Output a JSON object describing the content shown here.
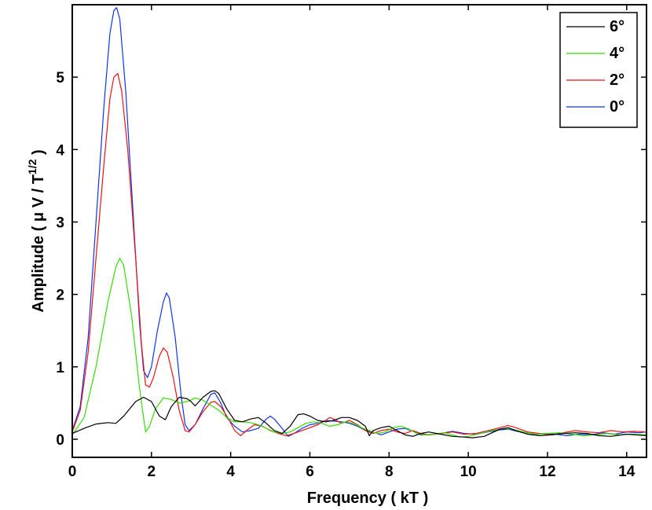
{
  "chart_data": {
    "type": "line",
    "xlabel": "Frequency ( kT )",
    "ylabel": "Amplitude ( μ V / T",
    "ylabel_superscript": "1/2",
    "ylabel_suffix": " )",
    "xlim": [
      0,
      14.5
    ],
    "ylim": [
      -0.25,
      6.0
    ],
    "xticks": [
      0,
      2,
      4,
      6,
      8,
      10,
      12,
      14
    ],
    "yticks": [
      0,
      1,
      2,
      3,
      4,
      5
    ],
    "grid": false,
    "legend_position": "top-right",
    "series": [
      {
        "name": "6°",
        "color": "#000000",
        "points": [
          [
            0,
            0.08
          ],
          [
            0.3,
            0.15
          ],
          [
            0.6,
            0.21
          ],
          [
            0.9,
            0.23
          ],
          [
            1.1,
            0.22
          ],
          [
            1.3,
            0.32
          ],
          [
            1.6,
            0.52
          ],
          [
            1.8,
            0.58
          ],
          [
            2.0,
            0.52
          ],
          [
            2.2,
            0.32
          ],
          [
            2.35,
            0.27
          ],
          [
            2.5,
            0.45
          ],
          [
            2.7,
            0.58
          ],
          [
            2.9,
            0.56
          ],
          [
            3.0,
            0.52
          ],
          [
            3.1,
            0.46
          ],
          [
            3.3,
            0.58
          ],
          [
            3.5,
            0.66
          ],
          [
            3.6,
            0.67
          ],
          [
            3.7,
            0.63
          ],
          [
            3.9,
            0.42
          ],
          [
            4.1,
            0.26
          ],
          [
            4.3,
            0.24
          ],
          [
            4.5,
            0.28
          ],
          [
            4.7,
            0.3
          ],
          [
            4.9,
            0.22
          ],
          [
            5.1,
            0.12
          ],
          [
            5.3,
            0.08
          ],
          [
            5.5,
            0.18
          ],
          [
            5.7,
            0.34
          ],
          [
            5.85,
            0.35
          ],
          [
            6.0,
            0.32
          ],
          [
            6.2,
            0.26
          ],
          [
            6.4,
            0.24
          ],
          [
            6.6,
            0.26
          ],
          [
            6.8,
            0.3
          ],
          [
            7.0,
            0.3
          ],
          [
            7.2,
            0.26
          ],
          [
            7.4,
            0.18
          ],
          [
            7.5,
            0.05
          ],
          [
            7.6,
            0.12
          ],
          [
            7.8,
            0.16
          ],
          [
            8.0,
            0.18
          ],
          [
            8.2,
            0.12
          ],
          [
            8.4,
            0.06
          ],
          [
            8.6,
            0.04
          ],
          [
            8.8,
            0.08
          ],
          [
            9.0,
            0.1
          ],
          [
            9.3,
            0.07
          ],
          [
            9.6,
            0.04
          ],
          [
            9.9,
            0.03
          ],
          [
            10.1,
            0.02
          ],
          [
            10.4,
            0.04
          ],
          [
            10.8,
            0.14
          ],
          [
            11.0,
            0.16
          ],
          [
            11.2,
            0.12
          ],
          [
            11.5,
            0.07
          ],
          [
            11.8,
            0.05
          ],
          [
            12.1,
            0.06
          ],
          [
            12.4,
            0.08
          ],
          [
            12.7,
            0.09
          ],
          [
            13.0,
            0.08
          ],
          [
            13.3,
            0.05
          ],
          [
            13.6,
            0.04
          ],
          [
            14.0,
            0.07
          ],
          [
            14.5,
            0.05
          ]
        ]
      },
      {
        "name": "4°",
        "color": "#33dd00",
        "points": [
          [
            0,
            0.06
          ],
          [
            0.3,
            0.3
          ],
          [
            0.6,
            1.0
          ],
          [
            0.9,
            1.9
          ],
          [
            1.1,
            2.38
          ],
          [
            1.2,
            2.5
          ],
          [
            1.3,
            2.4
          ],
          [
            1.5,
            1.7
          ],
          [
            1.7,
            0.7
          ],
          [
            1.85,
            0.1
          ],
          [
            1.95,
            0.18
          ],
          [
            2.1,
            0.42
          ],
          [
            2.3,
            0.57
          ],
          [
            2.5,
            0.55
          ],
          [
            2.7,
            0.5
          ],
          [
            2.9,
            0.52
          ],
          [
            3.1,
            0.57
          ],
          [
            3.3,
            0.54
          ],
          [
            3.5,
            0.47
          ],
          [
            3.7,
            0.4
          ],
          [
            3.9,
            0.3
          ],
          [
            4.1,
            0.24
          ],
          [
            4.3,
            0.24
          ],
          [
            4.5,
            0.23
          ],
          [
            4.7,
            0.2
          ],
          [
            4.9,
            0.15
          ],
          [
            5.1,
            0.1
          ],
          [
            5.3,
            0.08
          ],
          [
            5.5,
            0.1
          ],
          [
            5.7,
            0.16
          ],
          [
            5.9,
            0.22
          ],
          [
            6.1,
            0.24
          ],
          [
            6.3,
            0.22
          ],
          [
            6.5,
            0.18
          ],
          [
            6.7,
            0.2
          ],
          [
            6.9,
            0.24
          ],
          [
            7.1,
            0.22
          ],
          [
            7.3,
            0.16
          ],
          [
            7.5,
            0.12
          ],
          [
            7.7,
            0.08
          ],
          [
            7.9,
            0.1
          ],
          [
            8.1,
            0.16
          ],
          [
            8.3,
            0.18
          ],
          [
            8.5,
            0.14
          ],
          [
            8.7,
            0.08
          ],
          [
            8.9,
            0.06
          ],
          [
            9.1,
            0.07
          ],
          [
            9.4,
            0.09
          ],
          [
            9.6,
            0.06
          ],
          [
            9.8,
            0.03
          ],
          [
            10.0,
            0.04
          ],
          [
            10.3,
            0.08
          ],
          [
            10.6,
            0.12
          ],
          [
            10.9,
            0.15
          ],
          [
            11.1,
            0.14
          ],
          [
            11.4,
            0.1
          ],
          [
            11.7,
            0.07
          ],
          [
            12.0,
            0.08
          ],
          [
            12.3,
            0.09
          ],
          [
            12.6,
            0.07
          ],
          [
            12.9,
            0.05
          ],
          [
            13.2,
            0.06
          ],
          [
            13.5,
            0.08
          ],
          [
            13.8,
            0.06
          ],
          [
            14.1,
            0.07
          ],
          [
            14.5,
            0.06
          ]
        ]
      },
      {
        "name": "2°",
        "color": "#ee1111",
        "points": [
          [
            0,
            0.1
          ],
          [
            0.2,
            0.4
          ],
          [
            0.4,
            1.2
          ],
          [
            0.6,
            2.5
          ],
          [
            0.8,
            3.8
          ],
          [
            0.95,
            4.7
          ],
          [
            1.05,
            5.0
          ],
          [
            1.15,
            5.05
          ],
          [
            1.25,
            4.8
          ],
          [
            1.4,
            4.0
          ],
          [
            1.6,
            2.5
          ],
          [
            1.75,
            1.3
          ],
          [
            1.85,
            0.75
          ],
          [
            1.95,
            0.72
          ],
          [
            2.05,
            0.85
          ],
          [
            2.2,
            1.15
          ],
          [
            2.3,
            1.26
          ],
          [
            2.4,
            1.2
          ],
          [
            2.55,
            0.85
          ],
          [
            2.7,
            0.4
          ],
          [
            2.85,
            0.12
          ],
          [
            2.95,
            0.1
          ],
          [
            3.1,
            0.2
          ],
          [
            3.3,
            0.38
          ],
          [
            3.5,
            0.51
          ],
          [
            3.6,
            0.52
          ],
          [
            3.75,
            0.45
          ],
          [
            3.95,
            0.28
          ],
          [
            4.1,
            0.12
          ],
          [
            4.25,
            0.05
          ],
          [
            4.4,
            0.12
          ],
          [
            4.6,
            0.2
          ],
          [
            4.8,
            0.18
          ],
          [
            5.0,
            0.12
          ],
          [
            5.2,
            0.08
          ],
          [
            5.4,
            0.05
          ],
          [
            5.6,
            0.08
          ],
          [
            5.8,
            0.12
          ],
          [
            6.0,
            0.16
          ],
          [
            6.2,
            0.2
          ],
          [
            6.4,
            0.26
          ],
          [
            6.5,
            0.3
          ],
          [
            6.6,
            0.28
          ],
          [
            6.8,
            0.22
          ],
          [
            7.0,
            0.26
          ],
          [
            7.2,
            0.2
          ],
          [
            7.4,
            0.12
          ],
          [
            7.6,
            0.08
          ],
          [
            7.8,
            0.12
          ],
          [
            8.0,
            0.14
          ],
          [
            8.2,
            0.1
          ],
          [
            8.4,
            0.08
          ],
          [
            8.6,
            0.12
          ],
          [
            8.8,
            0.08
          ],
          [
            9.0,
            0.06
          ],
          [
            9.3,
            0.08
          ],
          [
            9.6,
            0.1
          ],
          [
            9.9,
            0.07
          ],
          [
            10.2,
            0.08
          ],
          [
            10.5,
            0.12
          ],
          [
            10.8,
            0.16
          ],
          [
            11.0,
            0.19
          ],
          [
            11.2,
            0.16
          ],
          [
            11.5,
            0.1
          ],
          [
            11.8,
            0.08
          ],
          [
            12.1,
            0.06
          ],
          [
            12.4,
            0.09
          ],
          [
            12.7,
            0.12
          ],
          [
            13.0,
            0.1
          ],
          [
            13.3,
            0.09
          ],
          [
            13.6,
            0.12
          ],
          [
            13.9,
            0.1
          ],
          [
            14.2,
            0.11
          ],
          [
            14.5,
            0.1
          ]
        ]
      },
      {
        "name": "0°",
        "color": "#1133ee",
        "points": [
          [
            0,
            0.12
          ],
          [
            0.2,
            0.45
          ],
          [
            0.4,
            1.4
          ],
          [
            0.6,
            3.0
          ],
          [
            0.8,
            4.6
          ],
          [
            0.95,
            5.6
          ],
          [
            1.05,
            5.92
          ],
          [
            1.12,
            5.96
          ],
          [
            1.2,
            5.8
          ],
          [
            1.35,
            4.8
          ],
          [
            1.55,
            3.0
          ],
          [
            1.7,
            1.6
          ],
          [
            1.8,
            0.95
          ],
          [
            1.9,
            0.85
          ],
          [
            2.0,
            1.0
          ],
          [
            2.15,
            1.5
          ],
          [
            2.3,
            1.9
          ],
          [
            2.38,
            2.02
          ],
          [
            2.45,
            1.95
          ],
          [
            2.6,
            1.4
          ],
          [
            2.75,
            0.6
          ],
          [
            2.85,
            0.2
          ],
          [
            2.95,
            0.12
          ],
          [
            3.1,
            0.2
          ],
          [
            3.3,
            0.42
          ],
          [
            3.5,
            0.62
          ],
          [
            3.6,
            0.64
          ],
          [
            3.75,
            0.5
          ],
          [
            3.9,
            0.3
          ],
          [
            4.1,
            0.18
          ],
          [
            4.3,
            0.1
          ],
          [
            4.5,
            0.12
          ],
          [
            4.7,
            0.15
          ],
          [
            4.9,
            0.28
          ],
          [
            5.0,
            0.32
          ],
          [
            5.1,
            0.28
          ],
          [
            5.3,
            0.15
          ],
          [
            5.45,
            0.04
          ],
          [
            5.6,
            0.08
          ],
          [
            5.8,
            0.15
          ],
          [
            6.0,
            0.2
          ],
          [
            6.2,
            0.22
          ],
          [
            6.4,
            0.26
          ],
          [
            6.6,
            0.25
          ],
          [
            6.8,
            0.24
          ],
          [
            7.0,
            0.22
          ],
          [
            7.2,
            0.18
          ],
          [
            7.4,
            0.12
          ],
          [
            7.6,
            0.1
          ],
          [
            7.8,
            0.06
          ],
          [
            8.0,
            0.1
          ],
          [
            8.2,
            0.14
          ],
          [
            8.4,
            0.15
          ],
          [
            8.6,
            0.11
          ],
          [
            8.8,
            0.06
          ],
          [
            9.0,
            0.06
          ],
          [
            9.3,
            0.08
          ],
          [
            9.6,
            0.11
          ],
          [
            9.9,
            0.08
          ],
          [
            10.2,
            0.07
          ],
          [
            10.5,
            0.1
          ],
          [
            10.8,
            0.13
          ],
          [
            11.0,
            0.14
          ],
          [
            11.3,
            0.1
          ],
          [
            11.6,
            0.06
          ],
          [
            11.9,
            0.08
          ],
          [
            12.2,
            0.07
          ],
          [
            12.5,
            0.05
          ],
          [
            12.8,
            0.07
          ],
          [
            13.1,
            0.06
          ],
          [
            13.4,
            0.09
          ],
          [
            13.7,
            0.07
          ],
          [
            14.0,
            0.1
          ],
          [
            14.3,
            0.09
          ],
          [
            14.5,
            0.1
          ]
        ]
      }
    ]
  }
}
